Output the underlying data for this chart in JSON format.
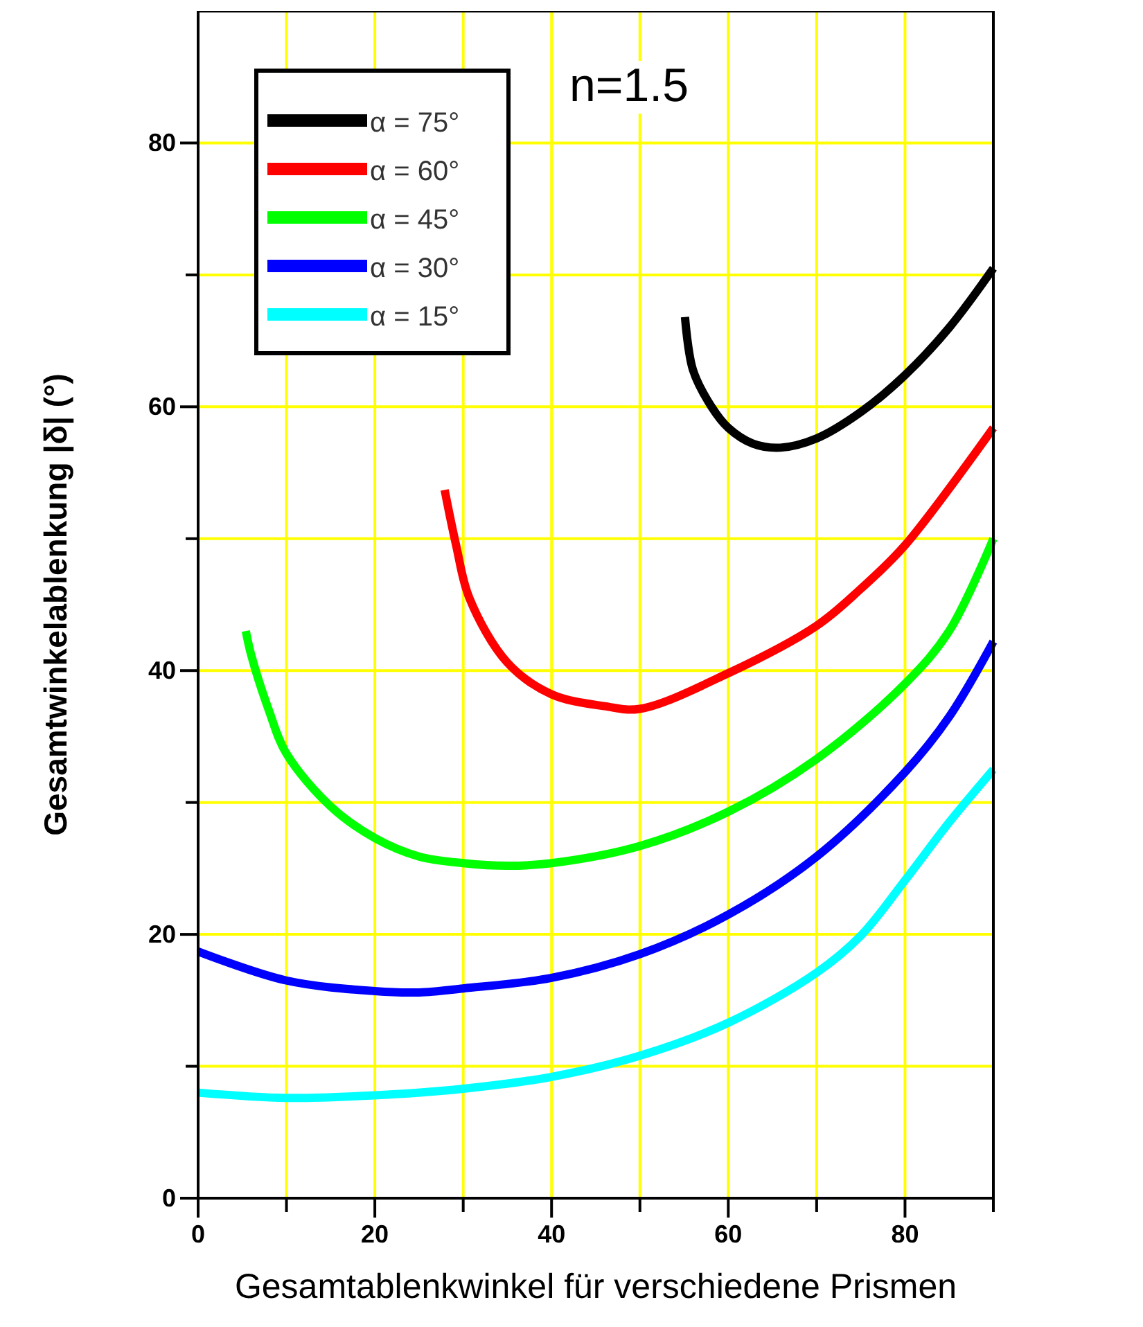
{
  "chart_data": {
    "type": "line",
    "xlabel": "Gesamtablenkwinkel für verschiedene Prismen",
    "ylabel": "Gesamtwinkelablenkung |δ| (°)",
    "annotations": [
      "n=1.5"
    ],
    "xlim": [
      0,
      90
    ],
    "ylim": [
      0,
      90
    ],
    "xticks": [
      0,
      {
        "value": 10,
        "label": null
      },
      20,
      {
        "value": 30,
        "label": null
      },
      40,
      {
        "value": 50,
        "label": null
      },
      60,
      {
        "value": 70,
        "label": null
      },
      80,
      {
        "value": 90,
        "label": null
      }
    ],
    "yticks": [
      0,
      {
        "value": 10,
        "label": null
      },
      20,
      {
        "value": 30,
        "label": null
      },
      40,
      {
        "value": 50,
        "label": null
      },
      60,
      {
        "value": 70,
        "label": null
      },
      80
    ],
    "grid": true,
    "legend": "top left",
    "marker": "none",
    "line_style": "solid",
    "series": [
      {
        "name": "α = 75°",
        "color": "#000000",
        "x": [
          55.1,
          56,
          58.1,
          60,
          62.8,
          65.9,
          70,
          75,
          80,
          85,
          90
        ],
        "values": [
          66.8,
          62.8,
          60,
          58.4,
          57.2,
          56.9,
          57.6,
          59.6,
          62.4,
          66,
          70.5
        ]
      },
      {
        "name": "α = 60°",
        "color": "#ff0000",
        "x": [
          27.9,
          29.2,
          30.7,
          35,
          40,
          46,
          50,
          60,
          70,
          75,
          80,
          90
        ],
        "values": [
          53.7,
          49.5,
          45.5,
          40.6,
          38.2,
          37.3,
          37.1,
          39.8,
          43.4,
          46.2,
          49.5,
          58.4
        ]
      },
      {
        "name": "α = 45°",
        "color": "#00ff00",
        "x": [
          5.4,
          6,
          8,
          10,
          15,
          20,
          25,
          30,
          35,
          40,
          50,
          60,
          70,
          80,
          85,
          90
        ],
        "values": [
          43,
          41.2,
          37,
          33.7,
          29.7,
          27.3,
          25.9,
          25.4,
          25.2,
          25.4,
          26.7,
          29.3,
          33.3,
          39,
          43,
          50
        ]
      },
      {
        "name": "α = 30°",
        "color": "#0000ff",
        "x": [
          0,
          10,
          20,
          25,
          30,
          40,
          50,
          60,
          70,
          80,
          85,
          90
        ],
        "values": [
          18.7,
          16.5,
          15.7,
          15.6,
          15.9,
          16.7,
          18.5,
          21.5,
          25.9,
          32.3,
          36.5,
          42.2
        ]
      },
      {
        "name": "α = 15°",
        "color": "#00ffff",
        "x": [
          0,
          10,
          20,
          30,
          40,
          50,
          60,
          70,
          75,
          80,
          85,
          90
        ],
        "values": [
          8,
          7.6,
          7.8,
          8.3,
          9.2,
          10.8,
          13.3,
          17.1,
          19.9,
          24.1,
          28.5,
          32.5
        ]
      }
    ]
  }
}
